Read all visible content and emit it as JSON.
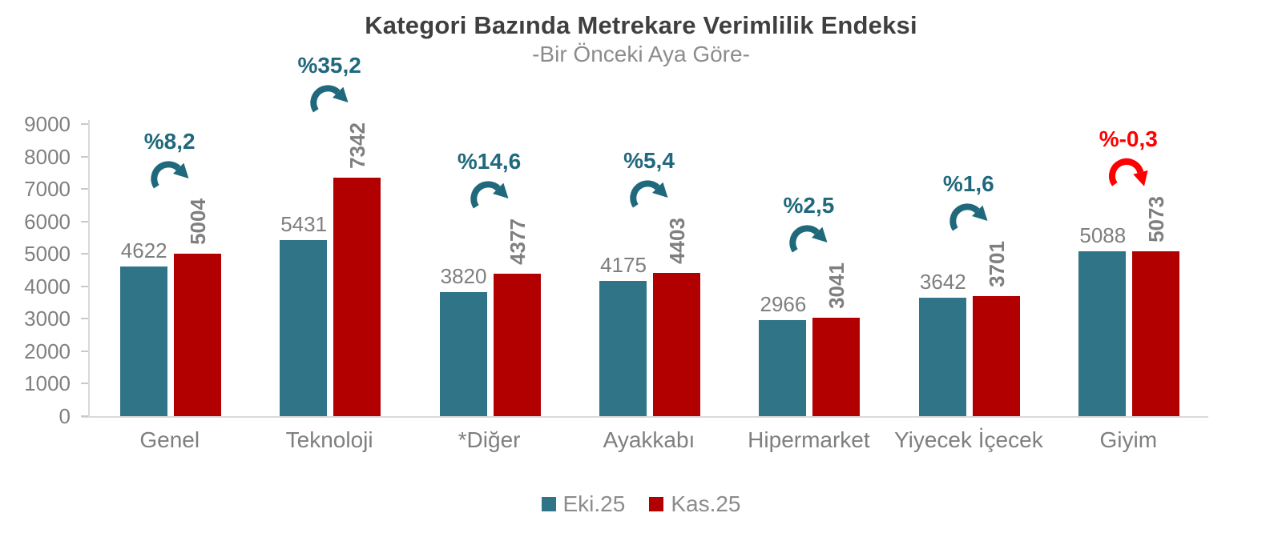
{
  "title": "Kategori Bazında Metrekare Verimlilik Endeksi",
  "subtitle": "-Bir Önceki Aya Göre-",
  "colors": {
    "series1": "#2f7487",
    "series2": "#b20000",
    "annotation_positive": "#20697c",
    "annotation_negative": "#ff0000",
    "title_text": "#3f3f3f",
    "subtitle_text": "#8c8c8c",
    "label_gray": "#7f7f7f",
    "axis_line": "#d9d9d9"
  },
  "chart_data": {
    "type": "bar",
    "title": "Kategori Bazında Metrekare Verimlilik Endeksi",
    "subtitle": "-Bir Önceki Aya Göre-",
    "xlabel": "",
    "ylabel": "",
    "categories": [
      "Genel",
      "Teknoloji",
      "*Diğer",
      "Ayakkabı",
      "Hipermarket",
      "Yiyecek İçecek",
      "Giyim"
    ],
    "series": [
      {
        "name": "Eki.25",
        "color": "#2f7487",
        "values": [
          4622,
          5431,
          3820,
          4175,
          2966,
          3642,
          5088
        ]
      },
      {
        "name": "Kas.25",
        "color": "#b20000",
        "values": [
          5004,
          7342,
          4377,
          4403,
          3041,
          3701,
          5073
        ]
      }
    ],
    "annotations": [
      {
        "label": "%8,2",
        "negative": false
      },
      {
        "label": "%35,2",
        "negative": false
      },
      {
        "label": "%14,6",
        "negative": false
      },
      {
        "label": "%5,4",
        "negative": false
      },
      {
        "label": "%2,5",
        "negative": false
      },
      {
        "label": "%1,6",
        "negative": false
      },
      {
        "label": "%-0,3",
        "negative": true
      }
    ],
    "ylim": [
      0,
      9000
    ],
    "yticks": [
      0,
      1000,
      2000,
      3000,
      4000,
      5000,
      6000,
      7000,
      8000,
      9000
    ],
    "grid": false,
    "legend_position": "bottom",
    "legend": [
      "Eki.25",
      "Kas.25"
    ]
  }
}
